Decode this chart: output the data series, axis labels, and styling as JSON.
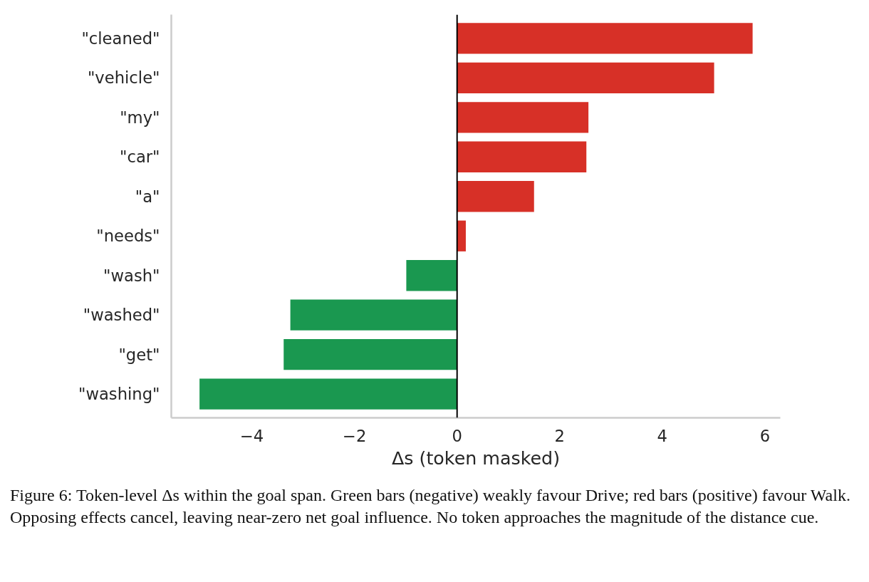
{
  "chart_data": {
    "type": "bar",
    "orientation": "horizontal",
    "categories": [
      "\"cleaned\"",
      "\"vehicle\"",
      "\"my\"",
      "\"car\"",
      "\"a\"",
      "\"needs\"",
      "\"wash\"",
      "\"washed\"",
      "\"get\"",
      "\"washing\""
    ],
    "values": [
      5.76,
      5.01,
      2.56,
      2.52,
      1.5,
      0.17,
      -0.99,
      -3.25,
      -3.38,
      -5.02
    ],
    "colors": [
      "#d73027",
      "#d73027",
      "#d73027",
      "#d73027",
      "#d73027",
      "#d73027",
      "#1a9850",
      "#1a9850",
      "#1a9850",
      "#1a9850"
    ],
    "xlim": [
      -5.57,
      6.3
    ],
    "xticks": [
      {
        "value": -4,
        "label": "−4"
      },
      {
        "value": -2,
        "label": "−2"
      },
      0,
      2,
      4,
      6
    ],
    "xlabel": "Δs (token masked)",
    "ref_lines": [
      {
        "axis": "x",
        "value": 0,
        "color": "#000000"
      }
    ],
    "grid": false,
    "annotations": [
      "Figure 6: Token-level Δs within the goal span. Green bars (negative) weakly favour Drive; red bars (positive) favour Walk. Opposing effects cancel, leaving near-zero net goal influence. No token approaches the magnitude of the distance cue."
    ]
  }
}
